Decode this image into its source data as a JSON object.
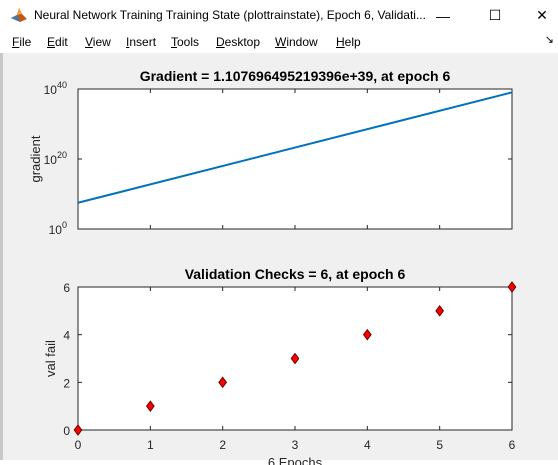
{
  "window": {
    "title": "Neural Network Training Training State (plottrainstate), Epoch 6, Validati...",
    "minimize_glyph": "—",
    "maximize_glyph": "☐",
    "close_glyph": "✕",
    "app_icon": "matlab-logo-icon"
  },
  "menubar": {
    "items": [
      {
        "key": "F",
        "rest": "ile"
      },
      {
        "key": "E",
        "rest": "dit"
      },
      {
        "key": "V",
        "rest": "iew"
      },
      {
        "key": "I",
        "rest": "nsert"
      },
      {
        "key": "T",
        "rest": "ools"
      },
      {
        "key": "D",
        "rest": "esktop"
      },
      {
        "key": "W",
        "rest": "indow"
      },
      {
        "key": "H",
        "rest": "elp"
      }
    ],
    "dock_glyph": "↘"
  },
  "colors": {
    "line": "#0072bd",
    "marker_fill": "#ff0000",
    "marker_edge": "#6b0000",
    "axes_bg": "#ffffff",
    "figure_bg": "#f0f0f0"
  },
  "chart_data": [
    {
      "type": "line",
      "title": "Gradient = 1.107696495219396e+39, at epoch 6",
      "ylabel": "gradient",
      "xlabel": "",
      "y_scale": "log",
      "xlim": [
        0,
        6
      ],
      "ylim_exp": [
        0,
        40
      ],
      "ytick_exponents": [
        0,
        20,
        40
      ],
      "ytick_base": "10",
      "x": [
        0,
        6
      ],
      "log10_y": [
        7.5,
        39.04
      ],
      "grid": false
    },
    {
      "type": "scatter",
      "title": "Validation Checks = 6, at epoch 6",
      "ylabel": "val fail",
      "xlabel": "6 Epochs",
      "xlim": [
        0,
        6
      ],
      "ylim": [
        0,
        6
      ],
      "xticks": [
        "0",
        "1",
        "2",
        "3",
        "4",
        "5",
        "6"
      ],
      "yticks": [
        "0",
        "2",
        "4",
        "6"
      ],
      "x": [
        0,
        1,
        2,
        3,
        4,
        5,
        6
      ],
      "y": [
        0,
        1,
        2,
        3,
        4,
        5,
        6
      ],
      "marker": "diamond",
      "grid": false
    }
  ]
}
